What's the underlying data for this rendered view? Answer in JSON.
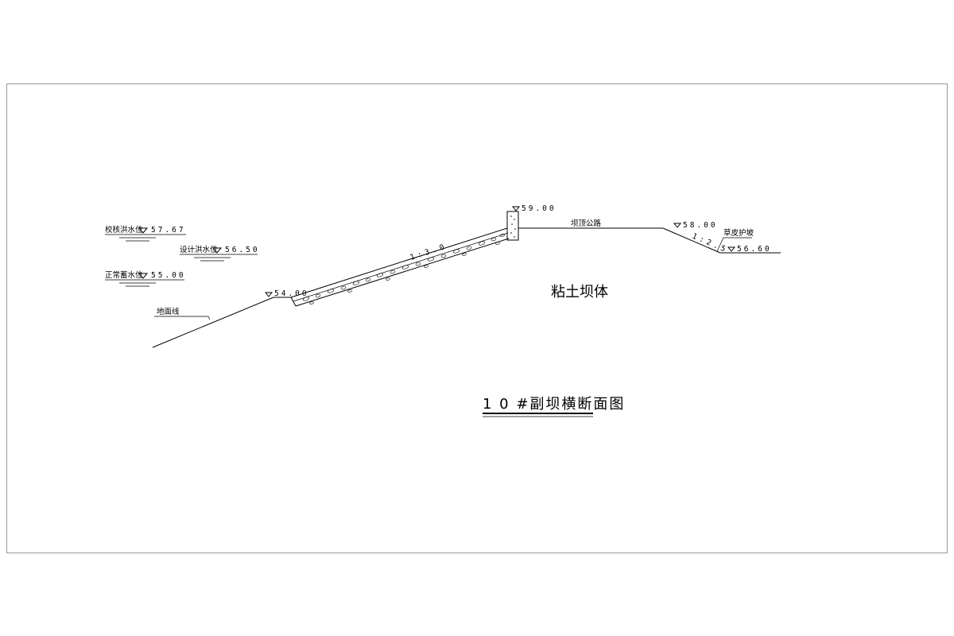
{
  "drawing": {
    "title": "1 0 #副坝横断面图",
    "body_label": "粘土坝体",
    "ground_label": "地面线",
    "road_label": "坝顶公路",
    "grass_label": "草皮护坡",
    "water_levels": [
      {
        "name": "校核洪水位",
        "value": "57.67"
      },
      {
        "name": "设计洪水位",
        "value": "56.50"
      },
      {
        "name": "正常蓄水位",
        "value": "55.00"
      }
    ],
    "elevations": {
      "toe": "54.00",
      "crest": "59.00",
      "downstream_berm": "58.00",
      "downstream_toe": "56.60"
    },
    "slopes": {
      "upstream": "1:3.0",
      "downstream": "1:2.5"
    }
  }
}
